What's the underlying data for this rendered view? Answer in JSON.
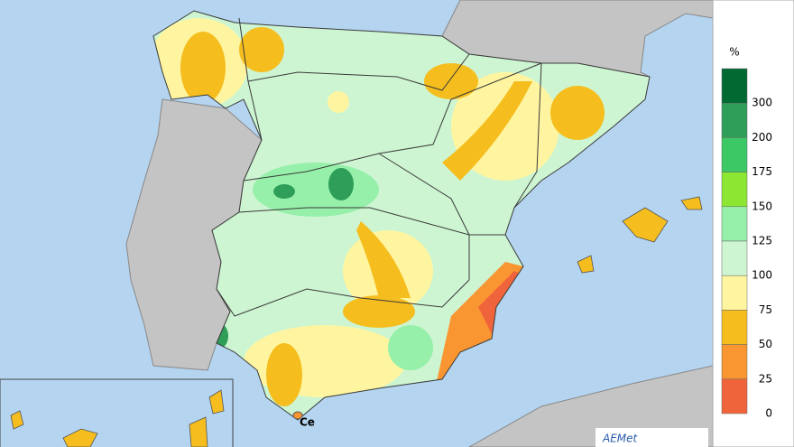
{
  "legend": {
    "unit": "%",
    "bins": [
      {
        "label": "300",
        "color": "#006a32"
      },
      {
        "label": "200",
        "color": "#2e9e58"
      },
      {
        "label": "175",
        "color": "#3cc864"
      },
      {
        "label": "150",
        "color": "#8ce632"
      },
      {
        "label": "125",
        "color": "#96f0aa"
      },
      {
        "label": "100",
        "color": "#cdf5d2"
      },
      {
        "label": "75",
        "color": "#fff5a0"
      },
      {
        "label": "50",
        "color": "#f5be1e"
      },
      {
        "label": "25",
        "color": "#fa9632"
      },
      {
        "label": "0",
        "color": "#f0643c"
      }
    ]
  },
  "map_labels": {
    "ceuta": "Ce"
  },
  "logo": "AEMet"
}
